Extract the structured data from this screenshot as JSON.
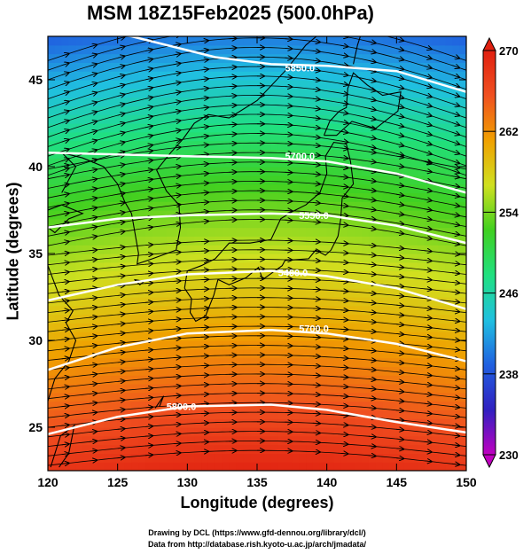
{
  "title": "MSM 18Z15Feb2025 (500.0hPa)",
  "xlabel": "Longitude (degrees)",
  "ylabel": "Latitude  (degrees)",
  "credit_line1": "Drawing by DCL (https://www.gfd-dennou.org/library/dcl/)",
  "credit_line2": "Data from http://database.rish.kyoto-u.ac.jp/arch/jmadata/",
  "chart_data": {
    "type": "heatmap",
    "x_range": [
      120,
      150
    ],
    "y_range": [
      22.5,
      47.5
    ],
    "x_ticks": [
      120,
      125,
      130,
      135,
      140,
      145,
      150
    ],
    "y_ticks": [
      25,
      30,
      35,
      40,
      45
    ],
    "x_tick_labels": [
      "120",
      "125",
      "130",
      "135",
      "140",
      "145",
      "150"
    ],
    "y_tick_labels": [
      "25",
      "30",
      "35",
      "40",
      "45"
    ],
    "colorbar": {
      "min": 230,
      "max": 270,
      "tick_values": [
        230,
        238,
        246,
        254,
        262,
        270
      ],
      "tick_labels": [
        "230",
        "238",
        "246",
        "254",
        "262",
        "270"
      ],
      "colors": [
        "#c000c0",
        "#3020c0",
        "#2060e0",
        "#20c0e0",
        "#20e080",
        "#40d020",
        "#d0e020",
        "#f0a000",
        "#f05020",
        "#e02010"
      ]
    },
    "contours": [
      {
        "label": "5850.0",
        "label_lon": 137,
        "label_lat": 45.7,
        "points": [
          [
            120,
            48.2
          ],
          [
            126,
            47.5
          ],
          [
            132,
            46.3
          ],
          [
            136,
            45.9
          ],
          [
            140,
            45.8
          ],
          [
            145,
            45.5
          ],
          [
            150,
            44.3
          ]
        ]
      },
      {
        "label": "5700.0",
        "label_lon": 137,
        "label_lat": 40.6,
        "points": [
          [
            120,
            40.8
          ],
          [
            125,
            40.7
          ],
          [
            130,
            40.6
          ],
          [
            136,
            40.5
          ],
          [
            140,
            40.3
          ],
          [
            145,
            39.6
          ],
          [
            150,
            38.5
          ]
        ]
      },
      {
        "label": "5550.0",
        "label_lon": 138,
        "label_lat": 37.2,
        "points": [
          [
            120,
            36.5
          ],
          [
            125,
            37.0
          ],
          [
            130,
            37.2
          ],
          [
            136,
            37.3
          ],
          [
            140,
            37.2
          ],
          [
            145,
            36.6
          ],
          [
            150,
            35.6
          ]
        ]
      },
      {
        "label": "5400.0",
        "label_lon": 136.5,
        "label_lat": 33.9,
        "points": [
          [
            120,
            32.3
          ],
          [
            125,
            33.2
          ],
          [
            130,
            33.8
          ],
          [
            136,
            34.0
          ],
          [
            140,
            33.7
          ],
          [
            145,
            33.0
          ],
          [
            150,
            31.8
          ]
        ]
      },
      {
        "label": "5700.0",
        "label_lon": 138,
        "label_lat": 30.7,
        "points": [
          [
            120,
            28.3
          ],
          [
            125,
            29.6
          ],
          [
            130,
            30.4
          ],
          [
            136,
            30.6
          ],
          [
            140,
            30.4
          ],
          [
            145,
            29.8
          ],
          [
            150,
            28.8
          ]
        ]
      },
      {
        "label": "5800.0",
        "label_lon": 128.5,
        "label_lat": 26.2,
        "points": [
          [
            120,
            24.6
          ],
          [
            125,
            25.6
          ],
          [
            130,
            26.2
          ],
          [
            136,
            26.3
          ],
          [
            140,
            26.0
          ],
          [
            145,
            25.3
          ],
          [
            150,
            24.7
          ]
        ]
      }
    ],
    "wind": "westerly"
  }
}
